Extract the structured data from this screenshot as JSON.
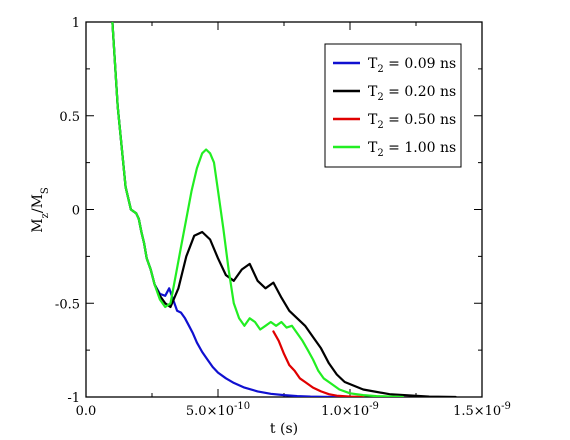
{
  "chart_data": {
    "type": "line",
    "title": "",
    "xlabel": "t (s)",
    "ylabel_main": "M",
    "ylabel_sub1": "z",
    "ylabel_slash": "/M",
    "ylabel_sub2": "S",
    "xlim": [
      0,
      1.5e-09
    ],
    "ylim": [
      -1,
      1
    ],
    "grid": false,
    "legend_placement": "top-right",
    "x_ticks": [
      {
        "value": 0,
        "label": "0.0",
        "exp": ""
      },
      {
        "value": 5e-10,
        "label": "5.0×10",
        "exp": "-10"
      },
      {
        "value": 1e-09,
        "label": "1.0×10",
        "exp": "-9"
      },
      {
        "value": 1.5e-09,
        "label": "1.5×10",
        "exp": "-9"
      }
    ],
    "y_ticks": [
      {
        "value": 1,
        "label": "1"
      },
      {
        "value": 0.5,
        "label": "0.5"
      },
      {
        "value": 0,
        "label": "0"
      },
      {
        "value": -0.5,
        "label": "-0.5"
      },
      {
        "value": -1,
        "label": "-1"
      }
    ],
    "series": [
      {
        "name": "T₂ = 0.09 ns",
        "legend_main": "T",
        "legend_sub": "2",
        "legend_rest": " = 0.09 ns",
        "color": "#1010d0",
        "x": [
          1e-10,
          1.2e-10,
          1.5e-10,
          1.7e-10,
          1.9e-10,
          2e-10,
          2.1e-10,
          2.2e-10,
          2.3e-10,
          2.45e-10,
          2.6e-10,
          2.8e-10,
          3e-10,
          3.15e-10,
          3.3e-10,
          3.45e-10,
          3.6e-10,
          3.75e-10,
          3.9e-10,
          4.05e-10,
          4.2e-10,
          4.4e-10,
          4.6e-10,
          4.8e-10,
          5e-10,
          5.3e-10,
          5.6e-10,
          6e-10,
          6.5e-10,
          7e-10,
          7.5e-10,
          8e-10,
          8.5e-10,
          9e-10,
          9.5e-10,
          1e-09
        ],
        "y": [
          1.0,
          0.55,
          0.12,
          0.0,
          -0.02,
          -0.05,
          -0.12,
          -0.18,
          -0.26,
          -0.32,
          -0.4,
          -0.45,
          -0.46,
          -0.42,
          -0.48,
          -0.54,
          -0.55,
          -0.58,
          -0.62,
          -0.66,
          -0.71,
          -0.76,
          -0.8,
          -0.84,
          -0.87,
          -0.9,
          -0.925,
          -0.95,
          -0.97,
          -0.983,
          -0.99,
          -0.995,
          -0.998,
          -0.999,
          -1.0,
          -1.0
        ]
      },
      {
        "name": "T₂ = 0.20 ns",
        "legend_main": "T",
        "legend_sub": "2",
        "legend_rest": " = 0.20 ns",
        "color": "#000000",
        "x": [
          1e-10,
          1.2e-10,
          1.5e-10,
          1.7e-10,
          1.9e-10,
          2e-10,
          2.1e-10,
          2.2e-10,
          2.3e-10,
          2.45e-10,
          2.6e-10,
          2.8e-10,
          3e-10,
          3.2e-10,
          3.5e-10,
          3.8e-10,
          4.1e-10,
          4.4e-10,
          4.7e-10,
          5e-10,
          5.3e-10,
          5.6e-10,
          5.9e-10,
          6.2e-10,
          6.5e-10,
          6.8e-10,
          7.1e-10,
          7.4e-10,
          7.7e-10,
          8e-10,
          8.3e-10,
          8.6e-10,
          8.9e-10,
          9.2e-10,
          9.5e-10,
          9.8e-10,
          1.05e-09,
          1.15e-09,
          1.3e-09,
          1.4e-09
        ],
        "y": [
          1.0,
          0.55,
          0.12,
          0.0,
          -0.02,
          -0.05,
          -0.12,
          -0.18,
          -0.26,
          -0.32,
          -0.4,
          -0.46,
          -0.5,
          -0.52,
          -0.42,
          -0.25,
          -0.14,
          -0.12,
          -0.16,
          -0.26,
          -0.35,
          -0.38,
          -0.32,
          -0.29,
          -0.38,
          -0.42,
          -0.39,
          -0.47,
          -0.54,
          -0.58,
          -0.62,
          -0.68,
          -0.74,
          -0.82,
          -0.88,
          -0.92,
          -0.96,
          -0.985,
          -0.998,
          -1.0
        ]
      },
      {
        "name": "T₂ = 0.50 ns",
        "legend_main": "T",
        "legend_sub": "2",
        "legend_rest": " = 0.50 ns",
        "color": "#e00000",
        "x": [
          7.1e-10,
          7.3e-10,
          7.5e-10,
          7.7e-10,
          7.9e-10,
          8.1e-10,
          8.3e-10,
          8.6e-10,
          8.9e-10,
          9.2e-10,
          9.5e-10,
          1e-09,
          1.05e-09
        ],
        "y": [
          -0.65,
          -0.7,
          -0.77,
          -0.83,
          -0.86,
          -0.9,
          -0.92,
          -0.95,
          -0.97,
          -0.985,
          -0.993,
          -0.998,
          -1.0
        ]
      },
      {
        "name": "T₂ = 1.00 ns",
        "legend_main": "T",
        "legend_sub": "2",
        "legend_rest": " = 1.00 ns",
        "color": "#22ee22",
        "x": [
          1e-10,
          1.2e-10,
          1.5e-10,
          1.7e-10,
          1.9e-10,
          2e-10,
          2.1e-10,
          2.2e-10,
          2.3e-10,
          2.45e-10,
          2.6e-10,
          2.8e-10,
          3e-10,
          3.2e-10,
          3.4e-10,
          3.6e-10,
          3.8e-10,
          4e-10,
          4.2e-10,
          4.4e-10,
          4.55e-10,
          4.7e-10,
          4.85e-10,
          5e-10,
          5.2e-10,
          5.4e-10,
          5.6e-10,
          5.8e-10,
          6e-10,
          6.2e-10,
          6.4e-10,
          6.6e-10,
          6.8e-10,
          7e-10,
          7.2e-10,
          7.4e-10,
          7.6e-10,
          7.8e-10,
          8e-10,
          8.2e-10,
          8.4e-10,
          8.6e-10,
          8.8e-10,
          9e-10,
          9.3e-10,
          9.6e-10,
          1e-09,
          1.05e-09,
          1.1e-09,
          1.2e-09
        ],
        "y": [
          1.0,
          0.55,
          0.12,
          0.0,
          -0.02,
          -0.05,
          -0.12,
          -0.18,
          -0.26,
          -0.32,
          -0.4,
          -0.48,
          -0.52,
          -0.5,
          -0.35,
          -0.2,
          -0.05,
          0.1,
          0.22,
          0.3,
          0.32,
          0.3,
          0.25,
          0.1,
          -0.1,
          -0.32,
          -0.5,
          -0.58,
          -0.62,
          -0.58,
          -0.6,
          -0.64,
          -0.62,
          -0.6,
          -0.62,
          -0.6,
          -0.63,
          -0.62,
          -0.66,
          -0.7,
          -0.75,
          -0.8,
          -0.86,
          -0.9,
          -0.93,
          -0.96,
          -0.98,
          -0.99,
          -0.995,
          -1.0
        ]
      }
    ]
  }
}
